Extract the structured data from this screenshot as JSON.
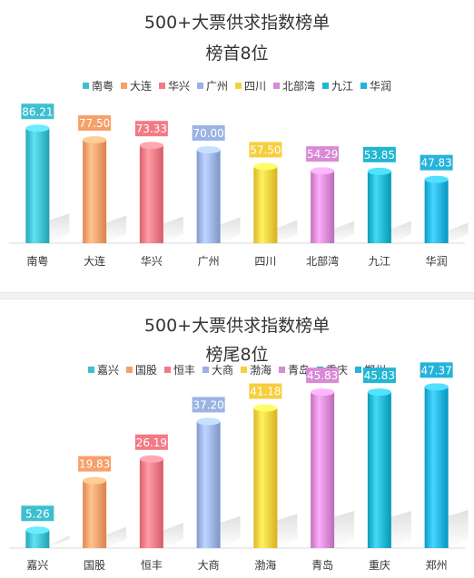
{
  "chart_data": [
    {
      "type": "bar",
      "title": "500+大票供求指数榜单",
      "subtitle": "榜首8位",
      "categories": [
        "南粤",
        "大连",
        "华兴",
        "广州",
        "四川",
        "北部湾",
        "九江",
        "华润"
      ],
      "values": [
        86.21,
        77.5,
        73.33,
        70.0,
        57.5,
        54.29,
        53.85,
        47.83
      ],
      "value_labels": [
        "86.21",
        "77.50",
        "73.33",
        "70.00",
        "57.50",
        "54.29",
        "53.85",
        "47.83"
      ],
      "colors": [
        "#3dbfd0",
        "#f7a06a",
        "#f37a84",
        "#9bb3e3",
        "#f6cf3c",
        "#d98ad6",
        "#21b6d2",
        "#24b3dc"
      ],
      "legend_position": "top",
      "grid": false
    },
    {
      "type": "bar",
      "title": "500+大票供求指数榜单",
      "subtitle": "榜尾8位",
      "categories": [
        "嘉兴",
        "国股",
        "恒丰",
        "大商",
        "渤海",
        "青岛",
        "重庆",
        "郑州"
      ],
      "values": [
        5.26,
        19.83,
        26.19,
        37.2,
        41.18,
        45.83,
        45.83,
        47.37
      ],
      "value_labels": [
        "5.26",
        "19.83",
        "26.19",
        "37.20",
        "41.18",
        "45.83",
        "45.83",
        "47.37"
      ],
      "colors": [
        "#3dbfd0",
        "#f7a06a",
        "#f37a84",
        "#9bb3e3",
        "#f6cf3c",
        "#d98ad6",
        "#21b6d2",
        "#24b3dc"
      ],
      "legend_position": "top",
      "grid": false
    }
  ]
}
